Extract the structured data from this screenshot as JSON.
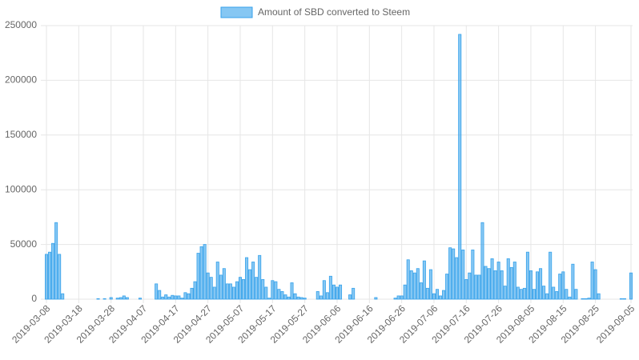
{
  "chart_data": {
    "type": "bar",
    "legend_label": "Amount of SBD converted to Steem",
    "color": "rgba(54,162,235,0.6)",
    "border_color": "#36a2eb",
    "categories": [
      "2019-03-08",
      null,
      null,
      null,
      null,
      null,
      null,
      null,
      null,
      null,
      "2019-03-18",
      null,
      null,
      null,
      null,
      null,
      null,
      null,
      null,
      null,
      "2019-03-28",
      null,
      null,
      null,
      null,
      null,
      null,
      null,
      null,
      null,
      "2019-04-07",
      null,
      null,
      null,
      null,
      null,
      null,
      null,
      null,
      null,
      "2019-04-17",
      null,
      null,
      null,
      null,
      null,
      null,
      null,
      null,
      null,
      "2019-04-27",
      null,
      null,
      null,
      null,
      null,
      null,
      null,
      null,
      null,
      "2019-05-07",
      null,
      null,
      null,
      null,
      null,
      null,
      null,
      null,
      null,
      "2019-05-17",
      null,
      null,
      null,
      null,
      null,
      null,
      null,
      null,
      null,
      "2019-05-27",
      null,
      null,
      null,
      null,
      null,
      null,
      null,
      null,
      null,
      "2019-06-06",
      null,
      null,
      null,
      null,
      null,
      null,
      null,
      null,
      null,
      "2019-06-16",
      null,
      null,
      null,
      null,
      null,
      null,
      null,
      null,
      null,
      "2019-06-26",
      null,
      null,
      null,
      null,
      null,
      null,
      null,
      null,
      null,
      "2019-07-06",
      null,
      null,
      null,
      null,
      null,
      null,
      null,
      null,
      null,
      "2019-07-16",
      null,
      null,
      null,
      null,
      null,
      null,
      null,
      null,
      null,
      "2019-07-26",
      null,
      null,
      null,
      null,
      null,
      null,
      null,
      null,
      null,
      "2019-08-05",
      null,
      null,
      null,
      null,
      null,
      null,
      null,
      null,
      null,
      "2019-08-15",
      null,
      null,
      null,
      null,
      null,
      null,
      null,
      null,
      null,
      "2019-08-25",
      null,
      null,
      null,
      null,
      null,
      null,
      null,
      null,
      null,
      null,
      "2019-09-05"
    ],
    "values": [
      41000,
      43000,
      51000,
      70000,
      41000,
      5000,
      0,
      0,
      0,
      0,
      0,
      0,
      0,
      0,
      0,
      0,
      500,
      0,
      500,
      0,
      1500,
      0,
      1000,
      1500,
      3000,
      1500,
      0,
      0,
      0,
      1000,
      0,
      0,
      0,
      0,
      14000,
      8000,
      2000,
      4000,
      2000,
      3500,
      3000,
      3000,
      1000,
      6000,
      5000,
      10000,
      16000,
      42000,
      48000,
      50000,
      24000,
      20000,
      11000,
      34000,
      22000,
      28000,
      14000,
      14000,
      11000,
      16000,
      20000,
      18000,
      38000,
      27000,
      34000,
      20000,
      40000,
      18000,
      11000,
      1000,
      17000,
      16000,
      9000,
      7000,
      4000,
      2000,
      15000,
      5000,
      2000,
      1500,
      1000,
      0,
      0,
      0,
      7000,
      3000,
      17000,
      6000,
      21000,
      13000,
      11000,
      13000,
      0,
      0,
      4000,
      10000,
      0,
      0,
      0,
      0,
      0,
      0,
      1500,
      0,
      0,
      0,
      0,
      0,
      1000,
      3000,
      3000,
      13000,
      36000,
      26000,
      24000,
      28000,
      15000,
      35000,
      10000,
      27000,
      5000,
      9000,
      3000,
      8000,
      23000,
      47000,
      46000,
      38000,
      242000,
      45000,
      18000,
      24000,
      45000,
      22000,
      22000,
      70000,
      30000,
      28000,
      37000,
      26000,
      34000,
      26000,
      12000,
      37000,
      29000,
      34000,
      11000,
      9000,
      10000,
      43000,
      26000,
      9000,
      25000,
      28000,
      12000,
      5000,
      43000,
      11000,
      7000,
      23000,
      25000,
      9000,
      2000,
      32000,
      9000,
      0,
      500,
      500,
      1000,
      34000,
      27000,
      5000,
      0,
      0,
      0,
      0,
      0,
      0,
      500,
      500,
      0,
      24000
    ],
    "ylim": [
      0,
      250000
    ],
    "yticks": [
      0,
      50000,
      100000,
      150000,
      200000,
      250000
    ],
    "grid": true
  }
}
